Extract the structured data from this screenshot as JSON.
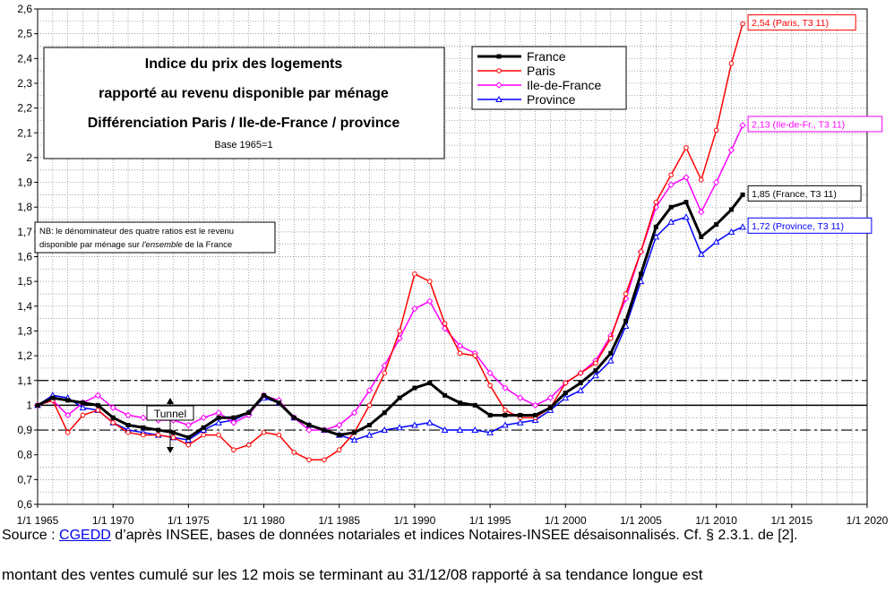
{
  "chart_data": {
    "type": "line",
    "title": "Indice du prix des logements",
    "subtitle_lines": [
      "rapporté au revenu disponible par ménage",
      "Différenciation Paris / Ile-de-France / province"
    ],
    "base_note": "Base 1965=1",
    "nb_note_line1": "NB: le dénominateur des quatre ratios est le revenu",
    "nb_note_line2_prefix": "disponible par ménage sur ",
    "nb_note_line2_italic": "l'ensemble",
    "nb_note_line2_suffix": " de la France",
    "tunnel_label": "Tunnel",
    "xlim": [
      1965,
      2020
    ],
    "ylim": [
      0.6,
      2.6
    ],
    "ytick_step": 0.05,
    "yticks": [
      0.6,
      0.7,
      0.8,
      0.9,
      1,
      1.1,
      1.2,
      1.3,
      1.4,
      1.5,
      1.6,
      1.7,
      1.8,
      1.9,
      2,
      2.1,
      2.2,
      2.3,
      2.4,
      2.5,
      2.6
    ],
    "ytick_labels": [
      "0,6",
      "0,7",
      "0,8",
      "0,9",
      "1",
      "1,1",
      "1,2",
      "1,3",
      "1,4",
      "1,5",
      "1,6",
      "1,7",
      "1,8",
      "1,9",
      "2",
      "2,1",
      "2,2",
      "2,3",
      "2,4",
      "2,5",
      "2,6"
    ],
    "xticks": [
      1965,
      1970,
      1975,
      1980,
      1985,
      1990,
      1995,
      2000,
      2005,
      2010,
      2015,
      2020
    ],
    "xtick_labels": [
      "1/1 1965",
      "1/1 1970",
      "1/1 1975",
      "1/1 1980",
      "1/1 1985",
      "1/1 1990",
      "1/1 1995",
      "1/1 2000",
      "1/1 2005",
      "1/1 2010",
      "1/1 2015",
      "1/1 2020"
    ],
    "x_minor_step": 1,
    "reference_lines": [
      {
        "y": 1.0,
        "style": "solid"
      },
      {
        "y": 1.1,
        "style": "dashdot"
      },
      {
        "y": 0.9,
        "style": "dashdot"
      }
    ],
    "legend": {
      "placement": "top-right",
      "entries": [
        "France",
        "Paris",
        "Ile-de-France",
        "Province"
      ]
    },
    "series": [
      {
        "name": "France",
        "color": "#000000",
        "marker": "square",
        "x": [
          1965,
          1966,
          1967,
          1968,
          1969,
          1970,
          1971,
          1972,
          1973,
          1974,
          1975,
          1976,
          1977,
          1978,
          1979,
          1980,
          1981,
          1982,
          1983,
          1984,
          1985,
          1986,
          1987,
          1988,
          1989,
          1990,
          1991,
          1992,
          1993,
          1994,
          1995,
          1996,
          1997,
          1998,
          1999,
          2000,
          2001,
          2002,
          2003,
          2004,
          2005,
          2006,
          2007,
          2008,
          2009,
          2010,
          2011,
          2011.75
        ],
        "y": [
          1.0,
          1.03,
          1.02,
          1.01,
          1.0,
          0.95,
          0.92,
          0.91,
          0.9,
          0.89,
          0.87,
          0.91,
          0.95,
          0.95,
          0.97,
          1.04,
          1.01,
          0.95,
          0.92,
          0.9,
          0.88,
          0.89,
          0.92,
          0.97,
          1.03,
          1.07,
          1.09,
          1.04,
          1.01,
          1.0,
          0.96,
          0.96,
          0.96,
          0.96,
          0.99,
          1.05,
          1.09,
          1.14,
          1.21,
          1.34,
          1.53,
          1.72,
          1.8,
          1.82,
          1.68,
          1.73,
          1.79,
          1.85
        ]
      },
      {
        "name": "Paris",
        "color": "#ff0000",
        "marker": "circle",
        "x": [
          1965,
          1966,
          1967,
          1968,
          1969,
          1970,
          1971,
          1972,
          1973,
          1974,
          1975,
          1976,
          1977,
          1978,
          1979,
          1980,
          1981,
          1982,
          1983,
          1984,
          1985,
          1986,
          1987,
          1988,
          1989,
          1990,
          1991,
          1992,
          1993,
          1994,
          1995,
          1996,
          1997,
          1998,
          1999,
          2000,
          2001,
          2002,
          2003,
          2004,
          2005,
          2006,
          2007,
          2008,
          2009,
          2010,
          2011,
          2011.75
        ],
        "y": [
          1.0,
          1.02,
          0.89,
          0.96,
          0.98,
          0.93,
          0.89,
          0.88,
          0.88,
          0.87,
          0.84,
          0.88,
          0.88,
          0.82,
          0.84,
          0.89,
          0.88,
          0.81,
          0.78,
          0.78,
          0.82,
          0.89,
          1.0,
          1.13,
          1.3,
          1.53,
          1.5,
          1.33,
          1.21,
          1.2,
          1.08,
          0.98,
          0.95,
          0.95,
          0.99,
          1.09,
          1.13,
          1.17,
          1.27,
          1.45,
          1.62,
          1.82,
          1.93,
          2.04,
          1.91,
          2.11,
          2.38,
          2.54
        ]
      },
      {
        "name": "Ile-de-France",
        "color": "#ff00ff",
        "marker": "diamond",
        "x": [
          1965,
          1966,
          1967,
          1968,
          1969,
          1970,
          1971,
          1972,
          1973,
          1974,
          1975,
          1976,
          1977,
          1978,
          1979,
          1980,
          1981,
          1982,
          1983,
          1984,
          1985,
          1986,
          1987,
          1988,
          1989,
          1990,
          1991,
          1992,
          1993,
          1994,
          1995,
          1996,
          1997,
          1998,
          1999,
          2000,
          2001,
          2002,
          2003,
          2004,
          2005,
          2006,
          2007,
          2008,
          2009,
          2010,
          2011,
          2011.75
        ],
        "y": [
          1.0,
          1.02,
          0.96,
          1.01,
          1.04,
          0.99,
          0.96,
          0.95,
          0.94,
          0.94,
          0.92,
          0.95,
          0.97,
          0.93,
          0.96,
          1.04,
          1.02,
          0.95,
          0.9,
          0.9,
          0.92,
          0.97,
          1.06,
          1.16,
          1.27,
          1.39,
          1.42,
          1.31,
          1.24,
          1.21,
          1.13,
          1.07,
          1.03,
          1.0,
          1.03,
          1.09,
          1.13,
          1.18,
          1.28,
          1.43,
          1.62,
          1.8,
          1.89,
          1.92,
          1.78,
          1.9,
          2.03,
          2.13
        ]
      },
      {
        "name": "Province",
        "color": "#0000ff",
        "marker": "triangle",
        "x": [
          1965,
          1966,
          1967,
          1968,
          1969,
          1970,
          1971,
          1972,
          1973,
          1974,
          1975,
          1976,
          1977,
          1978,
          1979,
          1980,
          1981,
          1982,
          1983,
          1984,
          1985,
          1986,
          1987,
          1988,
          1989,
          1990,
          1991,
          1992,
          1993,
          1994,
          1995,
          1996,
          1997,
          1998,
          1999,
          2000,
          2001,
          2002,
          2003,
          2004,
          2005,
          2006,
          2007,
          2008,
          2009,
          2010,
          2011,
          2011.75
        ],
        "y": [
          1.0,
          1.04,
          1.03,
          0.99,
          0.98,
          0.93,
          0.9,
          0.89,
          0.88,
          0.87,
          0.86,
          0.9,
          0.93,
          0.94,
          0.97,
          1.03,
          1.01,
          0.95,
          0.92,
          0.9,
          0.88,
          0.86,
          0.88,
          0.9,
          0.91,
          0.92,
          0.93,
          0.9,
          0.9,
          0.9,
          0.89,
          0.92,
          0.93,
          0.94,
          0.98,
          1.03,
          1.06,
          1.12,
          1.18,
          1.32,
          1.5,
          1.68,
          1.74,
          1.76,
          1.61,
          1.66,
          1.7,
          1.72
        ]
      }
    ],
    "annotations": [
      {
        "series": "Paris",
        "text": "2,54 (Paris, T3 11)",
        "color": "#ff0000"
      },
      {
        "series": "Ile-de-France",
        "text": "2,13 (Ile-de-Fr., T3 11)",
        "color": "#ff00ff"
      },
      {
        "series": "France",
        "text": "1,85 (France, T3 11)",
        "color": "#000000"
      },
      {
        "series": "Province",
        "text": "1,72 (Province, T3 11)",
        "color": "#0000ff"
      }
    ]
  },
  "source": {
    "prefix": "Source : ",
    "link": "CGEDD",
    "suffix": " d’après INSEE, bases de données notariales et indices Notaires-INSEE désaisonnalisés.  Cf. § 2.3.1. de [2]."
  },
  "footer_text": "montant  des ventes cumulé  sur les 12 mois se terminant  au 31/12/08 rapporté à sa tendance  longue est"
}
